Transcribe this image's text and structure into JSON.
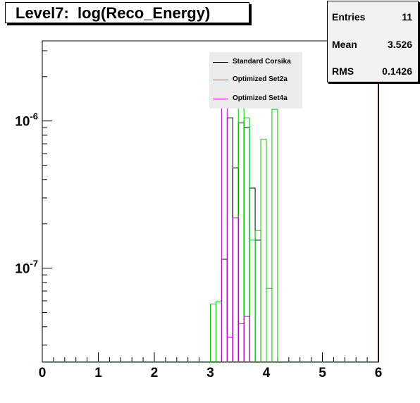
{
  "title": "Level7:  log(Reco_Energy)",
  "stats": {
    "entries_label": "Entries",
    "entries_value": "11",
    "mean_label": "Mean",
    "mean_value": "3.526",
    "rms_label": "RMS",
    "rms_value": "0.1426"
  },
  "colors": {
    "standard": "#000000",
    "set2a": "#00cc00",
    "set4a": "#cc00cc",
    "axis": "#000000"
  },
  "chart_data": {
    "type": "histogram-step",
    "title": "Level7:  log(Reco_Energy)",
    "xlabel": "",
    "ylabel": "",
    "xlim": [
      0,
      6
    ],
    "ylim": [
      2.3e-08,
      3.5e-06
    ],
    "yscale": "log",
    "grid": false,
    "legend_position": "upper-center",
    "x_ticks": [
      "0",
      "1",
      "2",
      "3",
      "4",
      "5",
      "6"
    ],
    "y_ticks": [
      {
        "value": 1e-06,
        "base": "10",
        "exp": "-6"
      },
      {
        "value": 1e-07,
        "base": "10",
        "exp": "-7"
      }
    ],
    "bin_width": 0.1,
    "series": [
      {
        "name": "Standard Corsika",
        "color": "#000000",
        "bins": [
          [
            3.2,
            3.3,
            1.15e-07
          ],
          [
            3.3,
            3.4,
            1.05e-06
          ],
          [
            3.4,
            3.5,
            4.8e-07
          ],
          [
            3.5,
            3.6,
            9.7e-07
          ],
          [
            3.6,
            3.7,
            9e-07
          ],
          [
            3.7,
            3.8,
            3.5e-07
          ],
          [
            3.8,
            3.9,
            1.55e-07
          ]
        ]
      },
      {
        "name": "Optimized Set2a",
        "color": "#00cc00",
        "bins": [
          [
            3.0,
            3.1,
            5.7e-08
          ],
          [
            3.1,
            3.2,
            5.9e-08
          ],
          [
            3.5,
            3.6,
            1.25e-06
          ],
          [
            3.6,
            3.7,
            1.05e-06
          ],
          [
            3.7,
            3.8,
            1.55e-07
          ],
          [
            3.8,
            3.9,
            1.8e-07
          ],
          [
            3.9,
            4.0,
            7.5e-07
          ],
          [
            4.0,
            4.1,
            7.3e-08
          ],
          [
            4.1,
            4.2,
            1.2e-06
          ]
        ]
      },
      {
        "name": "Optimized Set4a",
        "color": "#cc00cc",
        "bins": [
          [
            3.2,
            3.3,
            1.25e-06
          ],
          [
            3.3,
            3.4,
            3.4e-08
          ],
          [
            3.4,
            3.5,
            2.2e-07
          ],
          [
            3.5,
            3.6,
            4.2e-08
          ],
          [
            3.6,
            3.7,
            4.7e-08
          ]
        ]
      }
    ]
  }
}
